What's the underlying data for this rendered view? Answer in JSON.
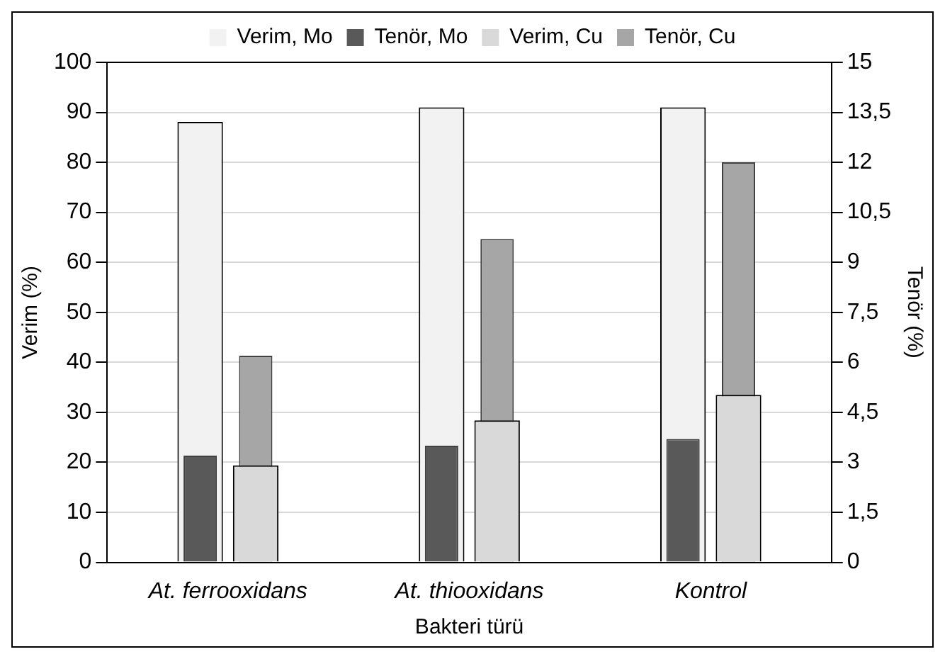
{
  "chart_data": {
    "type": "bar",
    "xlabel": "Bakteri türü",
    "ylabel": "Verim (%)",
    "y2label": "Tenör (%)",
    "categories": [
      "At. ferrooxidans",
      "At. thiooxidans",
      "Kontrol"
    ],
    "series": [
      {
        "name": "Verim, Mo",
        "color": "#f2f2f2",
        "values": [
          88.1,
          91,
          91
        ]
      },
      {
        "name": "Tenör, Mo",
        "color": "#595959",
        "axis": "y2",
        "values": [
          3.2,
          3.5,
          3.7
        ]
      },
      {
        "name": "Verim, Cu",
        "color": "#d9d9d9",
        "values": [
          19.4,
          28.4,
          33.5
        ]
      },
      {
        "name": "Tenör, Cu",
        "color": "#a6a6a6",
        "axis": "y2",
        "values": [
          6.2,
          9.7,
          12
        ]
      }
    ],
    "ylim": [
      0,
      100
    ],
    "yticks": [
      0,
      10,
      20,
      30,
      40,
      50,
      60,
      70,
      80,
      90,
      100
    ],
    "y2lim": [
      0,
      15
    ],
    "y2ticks": [
      0,
      {
        "value": 1.5,
        "label": "1,5"
      },
      3,
      {
        "value": 4.5,
        "label": "4,5"
      },
      6,
      {
        "value": 7.5,
        "label": "7,5"
      },
      9,
      {
        "value": 10.5,
        "label": "10,5"
      },
      12,
      {
        "value": 13.5,
        "label": "13,5"
      },
      15
    ],
    "grid": "y",
    "legend": "top"
  }
}
